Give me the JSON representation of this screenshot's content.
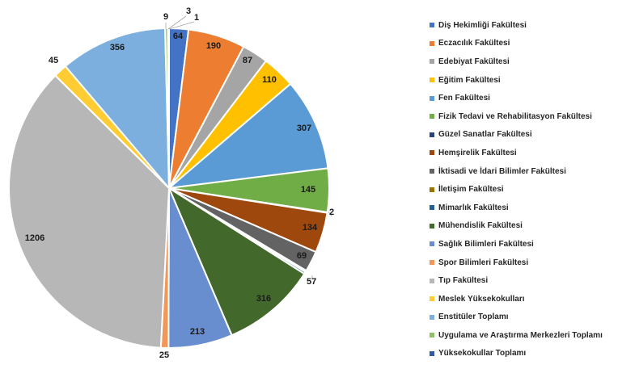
{
  "chart_data": {
    "type": "pie",
    "title": "",
    "legend_position": "right",
    "slices": [
      {
        "label": "Diş Hekimliği Fakültesi",
        "value": 64,
        "color": "#4472C4"
      },
      {
        "label": "Eczacılık Fakültesi",
        "value": 190,
        "color": "#ED7D31"
      },
      {
        "label": "Edebiyat Fakültesi",
        "value": 87,
        "color": "#A5A5A5"
      },
      {
        "label": "Eğitim Fakültesi",
        "value": 110,
        "color": "#FFC000"
      },
      {
        "label": "Fen Fakültesi",
        "value": 307,
        "color": "#5B9BD5"
      },
      {
        "label": "Fizik Tedavi ve Rehabilitasyon Fakültesi",
        "value": 145,
        "color": "#70AD47"
      },
      {
        "label": "Güzel Sanatlar Fakültesi",
        "value": 2,
        "color": "#264478"
      },
      {
        "label": "Hemşirelik Fakültesi",
        "value": 134,
        "color": "#9E480E"
      },
      {
        "label": "İktisadi ve İdari Bilimler Fakültesi",
        "value": 69,
        "color": "#636363"
      },
      {
        "label": "İletişim Fakültesi",
        "value": 5,
        "color": "#997300"
      },
      {
        "label": "Mimarlık Fakültesi",
        "value": 7,
        "color": "#255E91"
      },
      {
        "label": "Mühendislik Fakültesi",
        "value": 316,
        "color": "#43682B"
      },
      {
        "label": "Sağlık Bilimleri Fakültesi",
        "value": 213,
        "color": "#698ED0"
      },
      {
        "label": "Spor Bilimleri Fakültesi",
        "value": 25,
        "color": "#F1975A"
      },
      {
        "label": "Tıp Fakültesi",
        "value": 1206,
        "color": "#B7B7B7"
      },
      {
        "label": "Meslek Yüksekokulları",
        "value": 45,
        "color": "#FFCD33"
      },
      {
        "label": "Enstitüler Toplamı",
        "value": 356,
        "color": "#7CAFDD"
      },
      {
        "label": "Uygulama ve Araştırma Merkezleri Toplamı",
        "value": 9,
        "color": "#8CC168"
      },
      {
        "label": "Yüksekokullar Toplamı",
        "value": 3,
        "color": "#335AA1"
      },
      {
        "label": "",
        "value": 1,
        "color": "#F4B183"
      }
    ]
  }
}
